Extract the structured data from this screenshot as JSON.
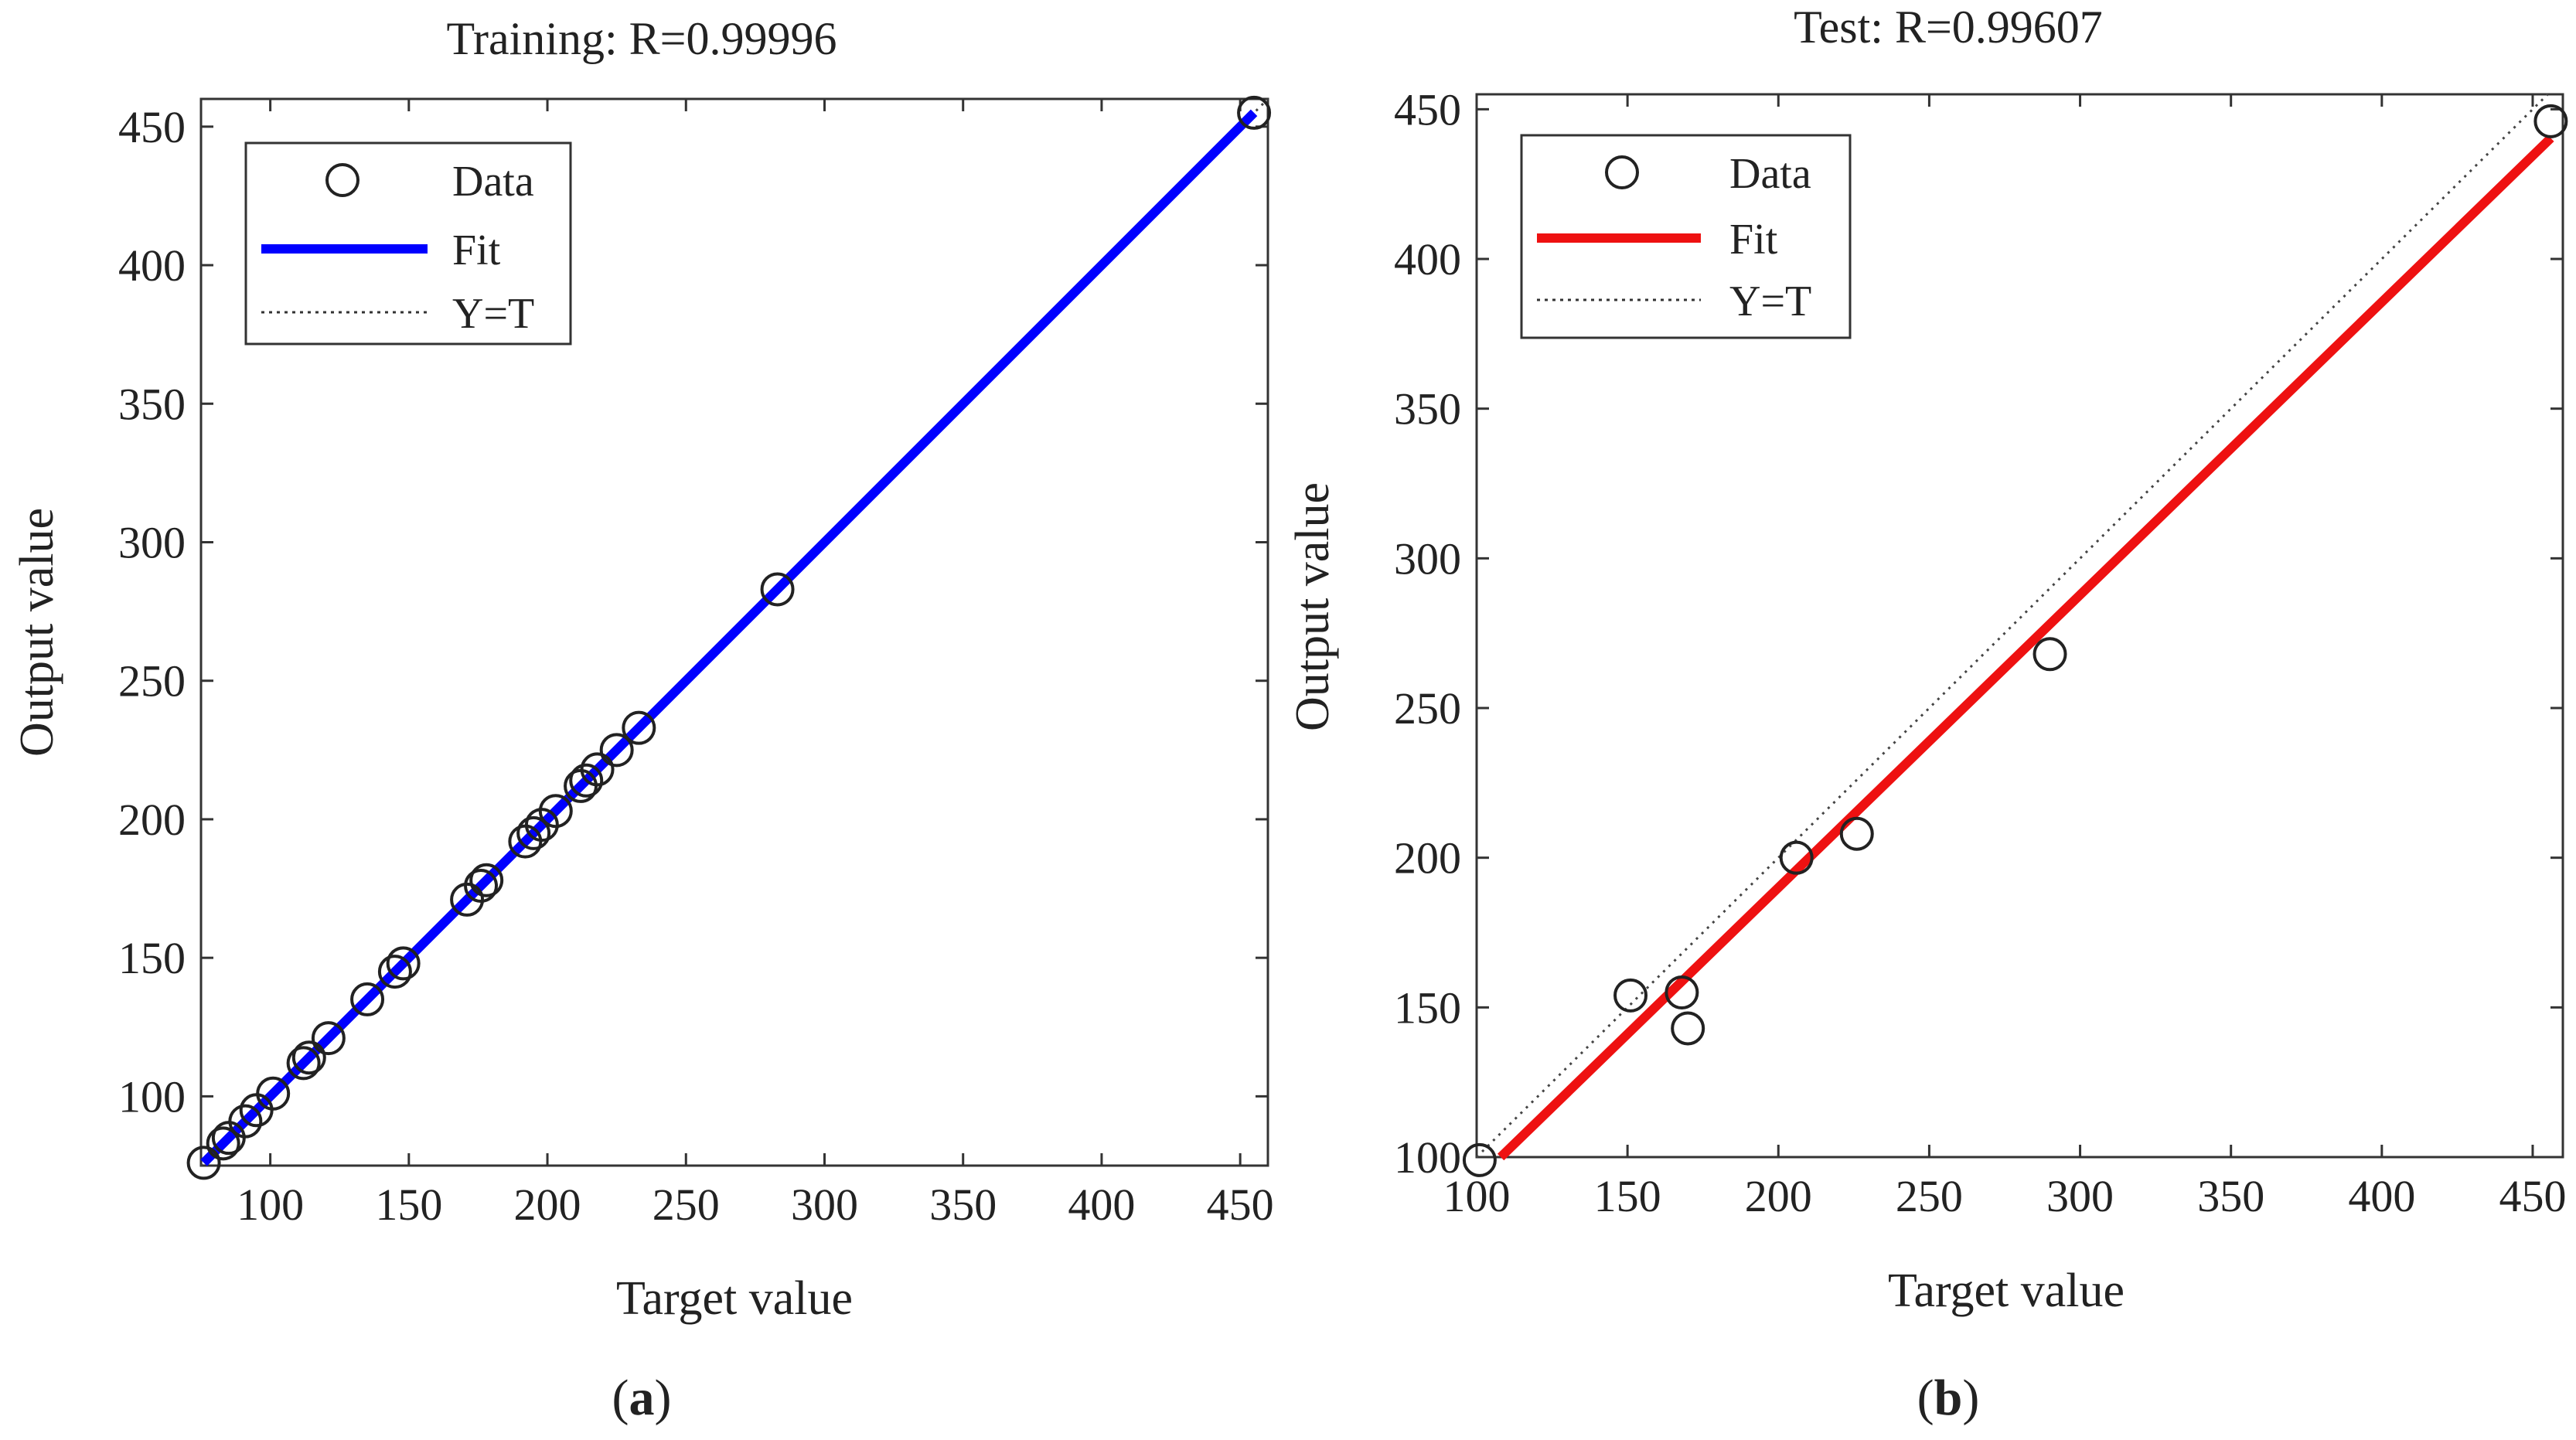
{
  "chart_data": [
    {
      "type": "scatter",
      "panel": "(a)",
      "panel_bold": "a",
      "title": "Training: R=0.99996",
      "xlabel": "Target value",
      "ylabel": "Output value",
      "xlim": [
        75,
        460
      ],
      "ylim": [
        75,
        460
      ],
      "xticks": [
        100,
        150,
        200,
        250,
        300,
        350,
        400,
        450
      ],
      "yticks": [
        100,
        150,
        200,
        250,
        300,
        350,
        400,
        450
      ],
      "legend": {
        "placement": "top-left",
        "entries": [
          "Data",
          "Fit",
          "Y=T"
        ]
      },
      "fit_color": "#0000ff",
      "fit_line": {
        "slope": 1.0,
        "intercept": 0.0
      },
      "series": [
        {
          "name": "Data",
          "x": [
            76,
            83,
            85,
            91,
            95,
            101,
            112,
            114,
            121,
            135,
            145,
            148,
            171,
            176,
            178,
            192,
            195,
            198,
            203,
            212,
            214,
            218,
            225,
            233,
            283,
            455
          ],
          "y": [
            76,
            83,
            85,
            91,
            95,
            101,
            112,
            114,
            121,
            135,
            145,
            148,
            171,
            176,
            178,
            192,
            195,
            198,
            203,
            212,
            214,
            218,
            225,
            233,
            283,
            455
          ]
        }
      ]
    },
    {
      "type": "scatter",
      "panel": "(b)",
      "panel_bold": "b",
      "title": "Test: R=0.99607",
      "xlabel": "Target value",
      "ylabel": "Output value",
      "xlim": [
        100,
        460
      ],
      "ylim": [
        100,
        455
      ],
      "xticks": [
        100,
        150,
        200,
        250,
        300,
        350,
        400,
        450
      ],
      "yticks": [
        100,
        150,
        200,
        250,
        300,
        350,
        400,
        450
      ],
      "legend": {
        "placement": "top-left",
        "entries": [
          "Data",
          "Fit",
          "Y=T"
        ]
      },
      "fit_color": "#ee1111",
      "fit_line": {
        "slope": 0.978,
        "intercept": -5.6
      },
      "series": [
        {
          "name": "Data",
          "x": [
            101,
            151,
            168,
            170,
            206,
            226,
            290,
            456
          ],
          "y": [
            99,
            154,
            155,
            143,
            200,
            208,
            268,
            446
          ]
        }
      ]
    }
  ]
}
